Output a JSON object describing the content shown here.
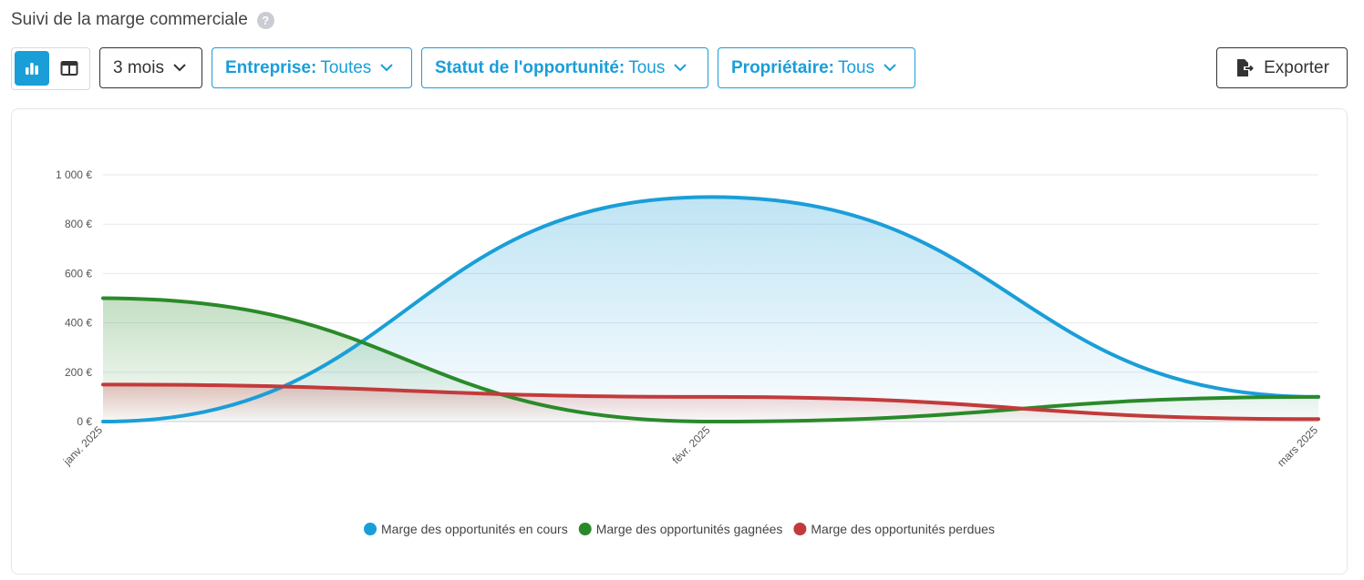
{
  "header": {
    "title": "Suivi de la marge commerciale",
    "help_icon": "?"
  },
  "toolbar": {
    "view_toggle": {
      "active": "chart"
    },
    "period": {
      "label": "3 mois"
    },
    "filters": [
      {
        "label": "Entreprise:",
        "value": "Toutes"
      },
      {
        "label": "Statut de l'opportunité:",
        "value": "Tous"
      },
      {
        "label": "Propriétaire:",
        "value": "Tous"
      }
    ],
    "export_label": "Exporter"
  },
  "colors": {
    "accent": "#1a9ed8",
    "en_cours": "#1a9ed8",
    "gagnees": "#2a8a2a",
    "perdues": "#c23b3b"
  },
  "chart_data": {
    "type": "area",
    "title": "",
    "xlabel": "",
    "ylabel": "",
    "categories": [
      "janv. 2025",
      "févr. 2025",
      "mars 2025"
    ],
    "ylim": [
      0,
      1000
    ],
    "yticks": [
      {
        "value": 0,
        "label": "0 €"
      },
      {
        "value": 200,
        "label": "200 €"
      },
      {
        "value": 400,
        "label": "400 €"
      },
      {
        "value": 600,
        "label": "600 €"
      },
      {
        "value": 800,
        "label": "800 €"
      },
      {
        "value": 1000,
        "label": "1 000 €"
      }
    ],
    "grid": true,
    "legend_position": "bottom",
    "series": [
      {
        "name": "Marge des opportunités en cours",
        "color": "#1a9ed8",
        "values": [
          0,
          910,
          100
        ]
      },
      {
        "name": "Marge des opportunités gagnées",
        "color": "#2a8a2a",
        "values": [
          500,
          0,
          100
        ]
      },
      {
        "name": "Marge des opportunités perdues",
        "color": "#c23b3b",
        "values": [
          150,
          100,
          10
        ]
      }
    ]
  }
}
